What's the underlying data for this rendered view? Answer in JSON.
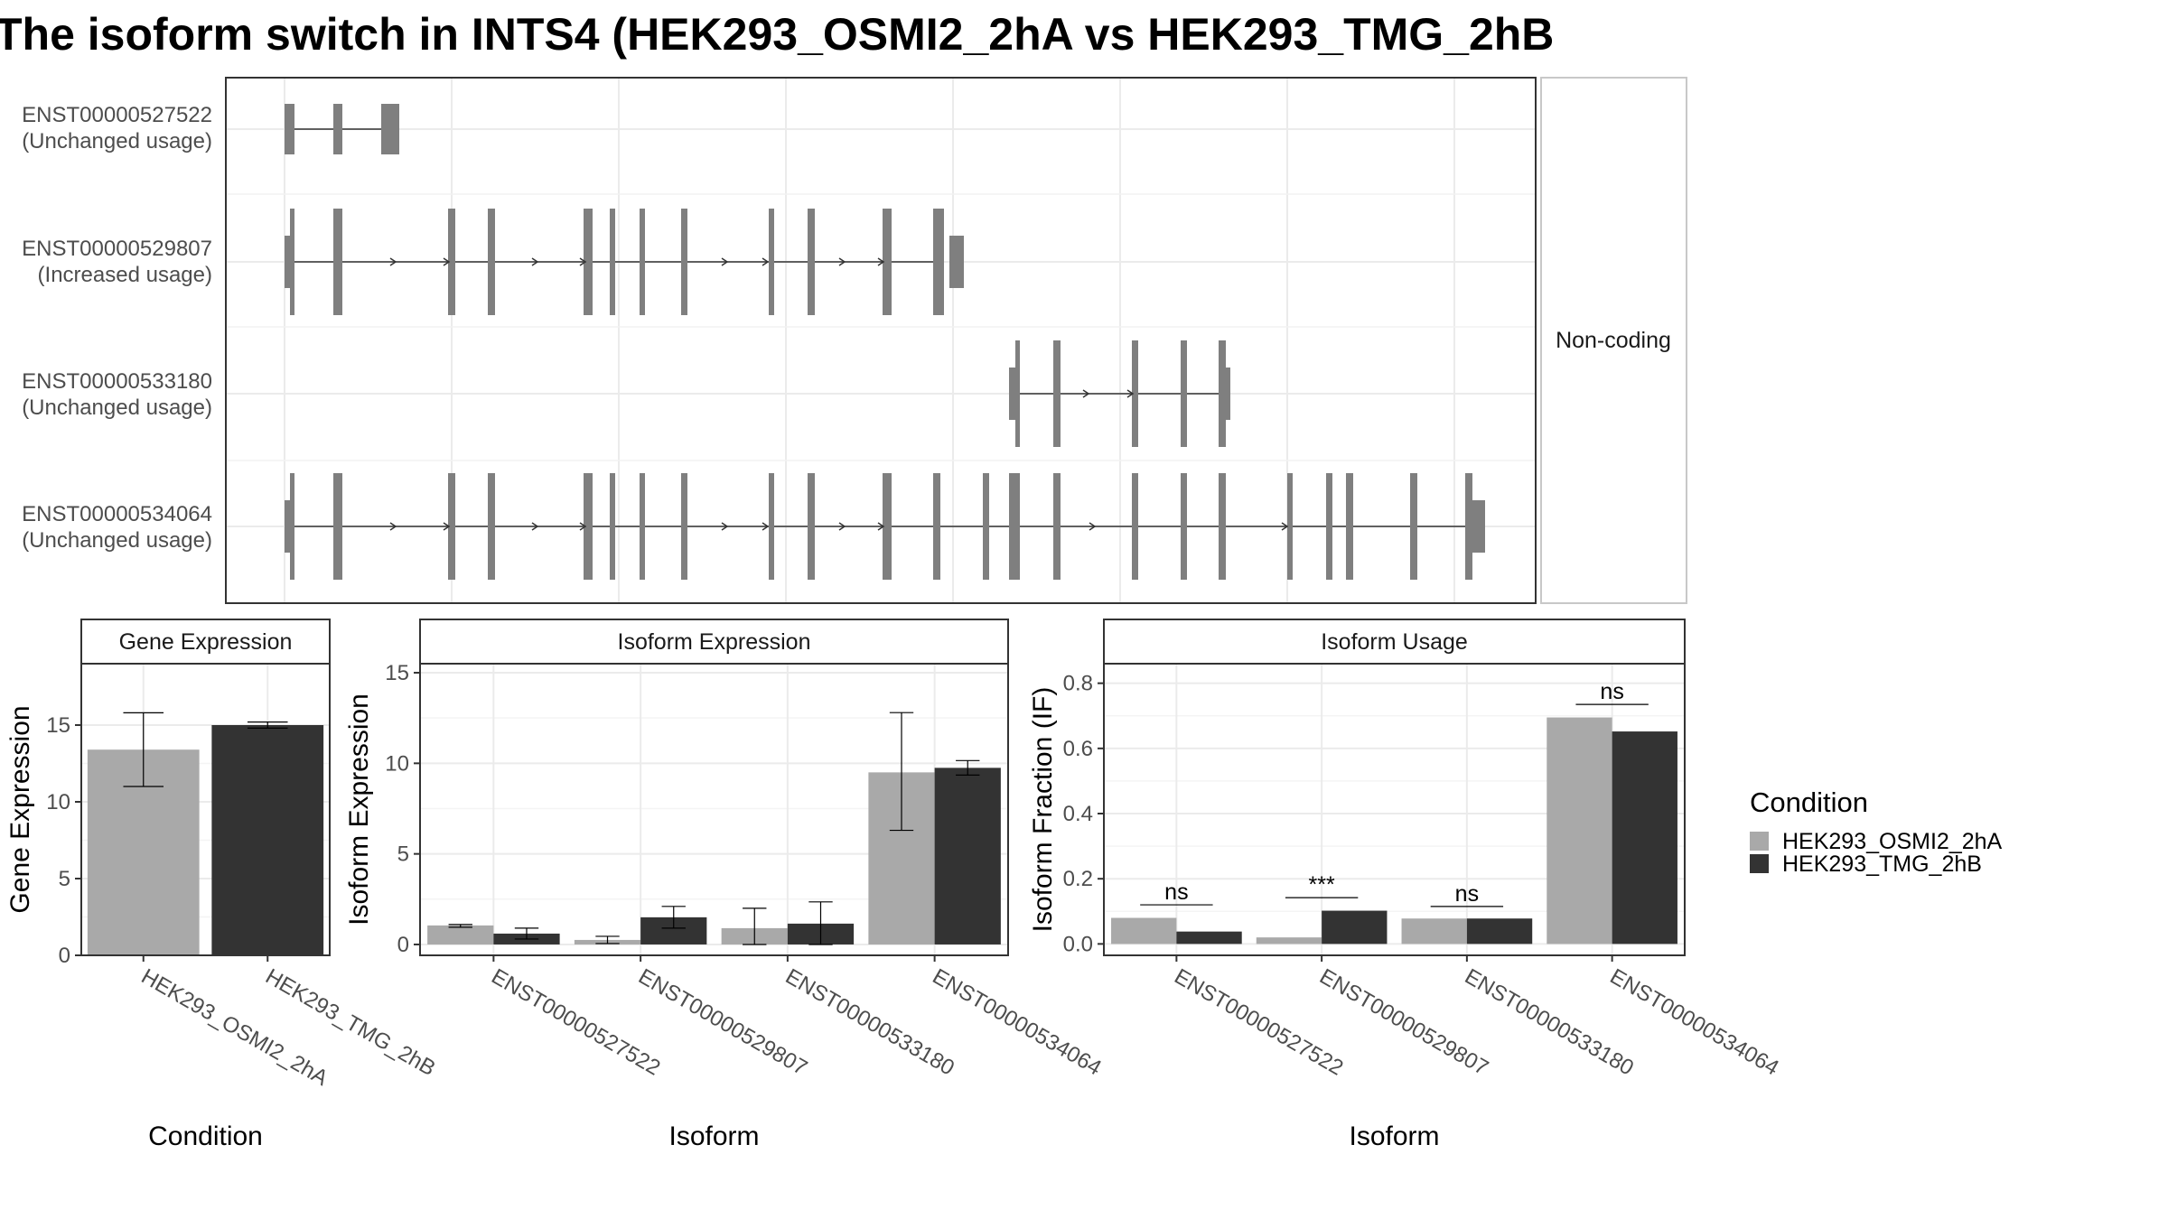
{
  "figure": {
    "title": "The isoform switch in INTS4 (HEK293_OSMI2_2hA vs HEK293_TMG_2hB",
    "structure_panel": {
      "strip_label": "Non-coding",
      "transcripts": [
        {
          "id": "ENST00000527522",
          "status": "(Unchanged usage)"
        },
        {
          "id": "ENST00000529807",
          "status": "(Increased usage)"
        },
        {
          "id": "ENST00000533180",
          "status": "(Unchanged usage)"
        },
        {
          "id": "ENST00000534064",
          "status": "(Unchanged usage)"
        }
      ]
    },
    "legend": {
      "title": "Condition",
      "entries": [
        {
          "label": "HEK293_OSMI2_2hA",
          "color": "#a9a9a9"
        },
        {
          "label": "HEK293_TMG_2hB",
          "color": "#333333"
        }
      ]
    }
  },
  "chart_data": [
    {
      "type": "bar",
      "title": "Gene Expression",
      "xlabel": "Condition",
      "ylabel": "Gene Expression",
      "categories": [
        "HEK293_OSMI2_2hA",
        "HEK293_TMG_2hB"
      ],
      "ylim": [
        0,
        19
      ],
      "yticks": [
        0,
        5,
        10,
        15
      ],
      "series": [
        {
          "name": "HEK293_OSMI2_2hA",
          "color": "#a9a9a9",
          "values": [
            13.4,
            null
          ],
          "err_low": [
            11.0,
            null
          ],
          "err_high": [
            15.8,
            null
          ]
        },
        {
          "name": "HEK293_TMG_2hB",
          "color": "#333333",
          "values": [
            null,
            15.0
          ],
          "err_low": [
            null,
            14.8
          ],
          "err_high": [
            null,
            15.2
          ]
        }
      ]
    },
    {
      "type": "bar",
      "title": "Isoform Expression",
      "xlabel": "Isoform",
      "ylabel": "Isoform Expression",
      "categories": [
        "ENST00000527522",
        "ENST00000529807",
        "ENST00000533180",
        "ENST00000534064"
      ],
      "ylim": [
        -0.6,
        15.5
      ],
      "yticks": [
        0,
        5,
        10,
        15
      ],
      "series": [
        {
          "name": "HEK293_OSMI2_2hA",
          "color": "#a9a9a9",
          "values": [
            1.05,
            0.25,
            0.9,
            9.5
          ],
          "err_low": [
            0.95,
            0.05,
            0.0,
            6.3
          ],
          "err_high": [
            1.1,
            0.45,
            2.0,
            12.8
          ]
        },
        {
          "name": "HEK293_TMG_2hB",
          "color": "#333333",
          "values": [
            0.6,
            1.5,
            1.15,
            9.75
          ],
          "err_low": [
            0.3,
            0.9,
            0.0,
            9.35
          ],
          "err_high": [
            0.9,
            2.1,
            2.35,
            10.15
          ]
        }
      ]
    },
    {
      "type": "bar",
      "title": "Isoform Usage",
      "xlabel": "Isoform",
      "ylabel": "Isoform Fraction (IF)",
      "categories": [
        "ENST00000527522",
        "ENST00000529807",
        "ENST00000533180",
        "ENST00000534064"
      ],
      "ylim": [
        -0.035,
        0.86
      ],
      "yticks": [
        0.0,
        0.2,
        0.4,
        0.6,
        0.8
      ],
      "ytick_labels": [
        "0.0",
        "0.2",
        "0.4",
        "0.6",
        "0.8"
      ],
      "series": [
        {
          "name": "HEK293_OSMI2_2hA",
          "color": "#a9a9a9",
          "values": [
            0.08,
            0.02,
            0.078,
            0.695
          ]
        },
        {
          "name": "HEK293_TMG_2hB",
          "color": "#333333",
          "values": [
            0.038,
            0.102,
            0.078,
            0.652
          ]
        }
      ],
      "significance": [
        {
          "label": "ns",
          "y": 0.12
        },
        {
          "label": "***",
          "y": 0.142
        },
        {
          "label": "ns",
          "y": 0.115
        },
        {
          "label": "ns",
          "y": 0.735
        }
      ]
    }
  ]
}
